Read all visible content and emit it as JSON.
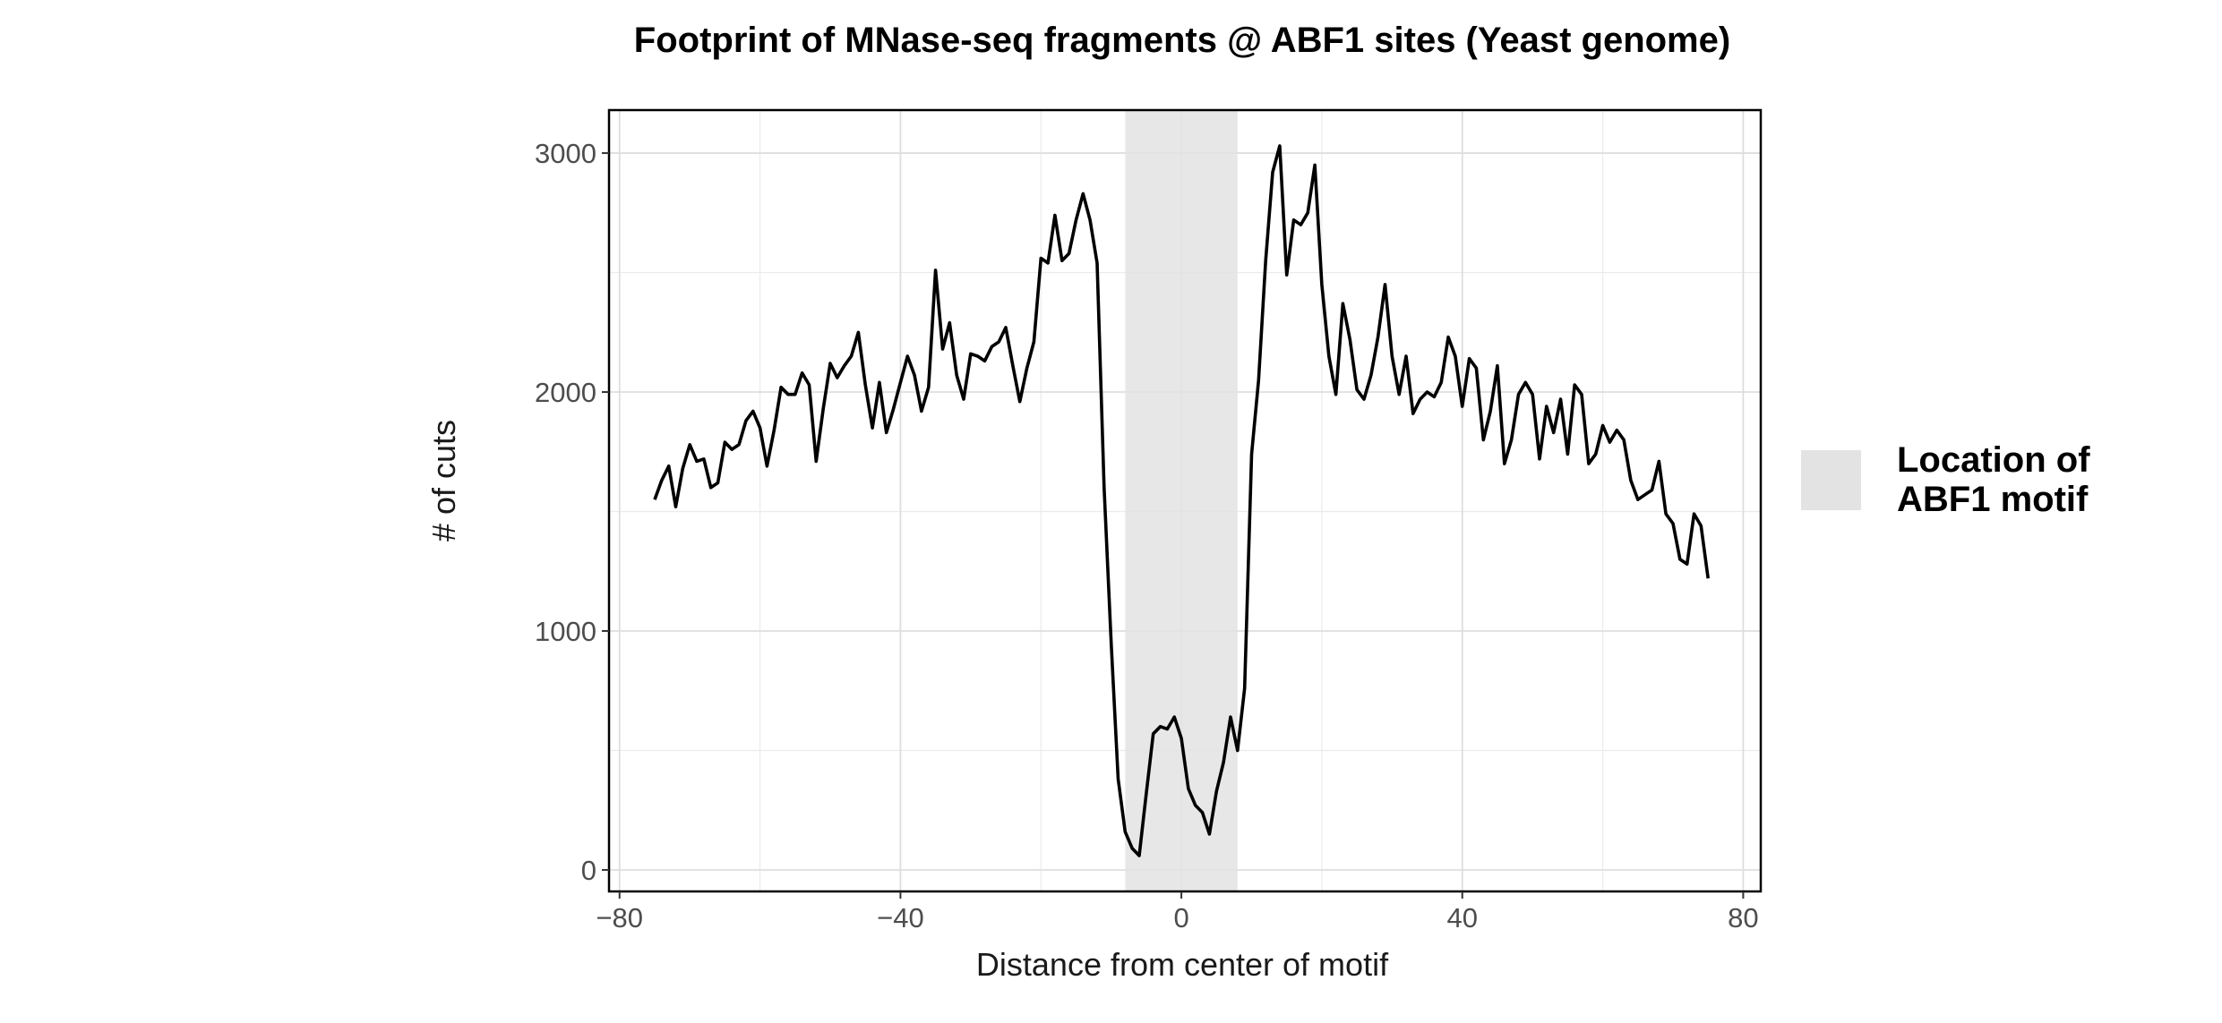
{
  "chart_data": {
    "type": "line",
    "title": "Footprint of MNase-seq fragments @ ABF1 sites (Yeast genome)",
    "xlabel": "Distance from center of motif",
    "ylabel": "# of cuts",
    "xlim": [
      -81.5,
      82.5
    ],
    "ylim": [
      -90,
      3180
    ],
    "x_ticks": [
      -80,
      -40,
      0,
      40,
      80
    ],
    "y_ticks": [
      0,
      1000,
      2000,
      3000
    ],
    "grid": true,
    "legend_position": "right",
    "line_color": "#000000",
    "shaded_region": {
      "x_start": -8,
      "x_end": 8,
      "color": "#e3e3e3",
      "label": "Location of ABF1 motif",
      "label_lines": [
        "Location of",
        "ABF1 motif"
      ]
    },
    "x": [
      -75,
      -74,
      -73,
      -72,
      -71,
      -70,
      -69,
      -68,
      -67,
      -66,
      -65,
      -64,
      -63,
      -62,
      -61,
      -60,
      -59,
      -58,
      -57,
      -56,
      -55,
      -54,
      -53,
      -52,
      -51,
      -50,
      -49,
      -48,
      -47,
      -46,
      -45,
      -44,
      -43,
      -42,
      -41,
      -40,
      -39,
      -38,
      -37,
      -36,
      -35,
      -34,
      -33,
      -32,
      -31,
      -30,
      -29,
      -28,
      -27,
      -26,
      -25,
      -24,
      -23,
      -22,
      -21,
      -20,
      -19,
      -18,
      -17,
      -16,
      -15,
      -14,
      -13,
      -12,
      -11,
      -10,
      -9,
      -8,
      -7,
      -6,
      -5,
      -4,
      -3,
      -2,
      -1,
      0,
      1,
      2,
      3,
      4,
      5,
      6,
      7,
      8,
      9,
      10,
      11,
      12,
      13,
      14,
      15,
      16,
      17,
      18,
      19,
      20,
      21,
      22,
      23,
      24,
      25,
      26,
      27,
      28,
      29,
      30,
      31,
      32,
      33,
      34,
      35,
      36,
      37,
      38,
      39,
      40,
      41,
      42,
      43,
      44,
      45,
      46,
      47,
      48,
      49,
      50,
      51,
      52,
      53,
      54,
      55,
      56,
      57,
      58,
      59,
      60,
      61,
      62,
      63,
      64,
      65,
      66,
      67,
      68,
      69,
      70,
      71,
      72,
      73,
      74,
      75
    ],
    "values": [
      1550,
      1630,
      1690,
      1520,
      1680,
      1780,
      1710,
      1720,
      1600,
      1620,
      1790,
      1760,
      1780,
      1880,
      1920,
      1850,
      1690,
      1840,
      2020,
      1990,
      1990,
      2080,
      2030,
      1710,
      1930,
      2120,
      2060,
      2110,
      2150,
      2250,
      2030,
      1850,
      2040,
      1830,
      1930,
      2040,
      2150,
      2070,
      1920,
      2020,
      2510,
      2180,
      2290,
      2070,
      1970,
      2160,
      2150,
      2130,
      2190,
      2210,
      2270,
      2110,
      1960,
      2100,
      2210,
      2560,
      2540,
      2740,
      2550,
      2580,
      2720,
      2830,
      2720,
      2540,
      1600,
      950,
      380,
      160,
      90,
      60,
      320,
      570,
      600,
      590,
      640,
      550,
      340,
      270,
      240,
      150,
      330,
      450,
      640,
      500,
      760,
      1740,
      2050,
      2550,
      2920,
      3030,
      2490,
      2720,
      2700,
      2750,
      2950,
      2450,
      2150,
      1990,
      2370,
      2220,
      2010,
      1970,
      2070,
      2230,
      2450,
      2150,
      1990,
      2150,
      1910,
      1970,
      2000,
      1980,
      2040,
      2230,
      2150,
      1940,
      2140,
      2100,
      1800,
      1920,
      2110,
      1700,
      1800,
      1990,
      2040,
      1990,
      1720,
      1940,
      1830,
      1970,
      1740,
      2030,
      1990,
      1700,
      1740,
      1860,
      1790,
      1840,
      1800,
      1630,
      1550,
      1570,
      1590,
      1710,
      1490,
      1450,
      1300,
      1280,
      1490,
      1440,
      1220
    ]
  }
}
